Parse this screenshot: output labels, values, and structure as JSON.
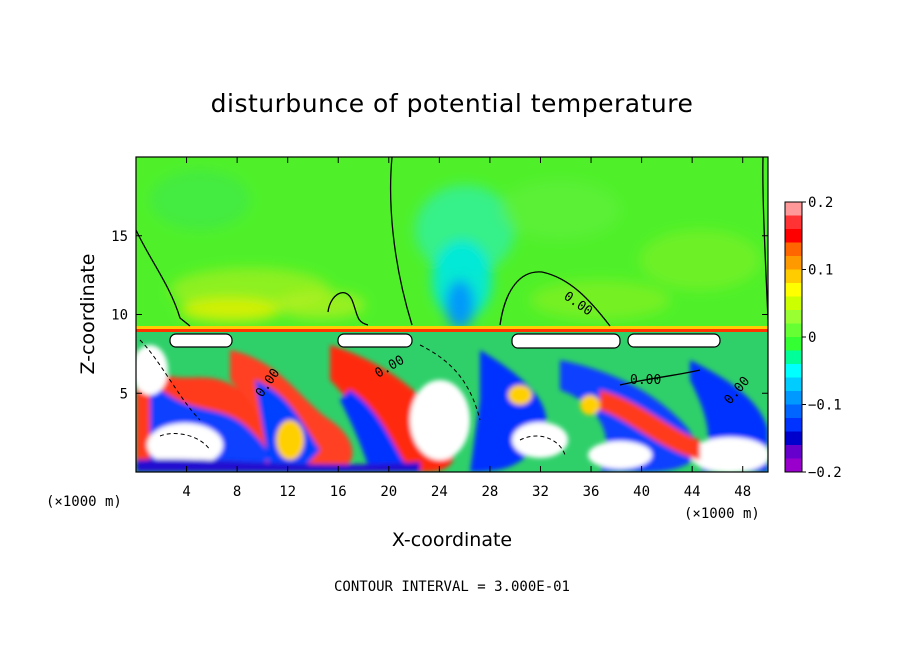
{
  "chart_data": {
    "type": "heatmap",
    "title": "disturbunce of potential temperature",
    "xlabel": "X-coordinate",
    "ylabel": "Z-coordinate",
    "x_unit": "(×1000 m)",
    "z_unit": "(×1000 m)",
    "xlim": [
      0,
      50
    ],
    "zlim": [
      0,
      20
    ],
    "x_ticks": [
      4,
      8,
      12,
      16,
      20,
      24,
      28,
      32,
      36,
      40,
      44,
      48
    ],
    "z_ticks": [
      5,
      10,
      15
    ],
    "colorbar": {
      "range": [
        -0.2,
        0.2
      ],
      "tick_labels": [
        "0.2",
        "0.1",
        "0",
        "−0.1",
        "−0.2"
      ],
      "tick_values": [
        0.2,
        0.1,
        0,
        -0.1,
        -0.2
      ],
      "colors": [
        "#ff9999",
        "#ff3333",
        "#ff0000",
        "#ff6600",
        "#ff9900",
        "#ffcc00",
        "#ffff00",
        "#ccff00",
        "#99ff33",
        "#66ff33",
        "#33ff33",
        "#00ff99",
        "#00ffff",
        "#00ccff",
        "#0099ff",
        "#0066ff",
        "#0033ff",
        "#0000cc",
        "#6600cc",
        "#9900cc"
      ]
    },
    "contour_labels": [
      "0.00",
      "0.00",
      "0.00",
      "0.00",
      "0.00",
      "0.00"
    ],
    "contour_interval_text": "CONTOUR INTERVAL = 3.000E-01"
  }
}
